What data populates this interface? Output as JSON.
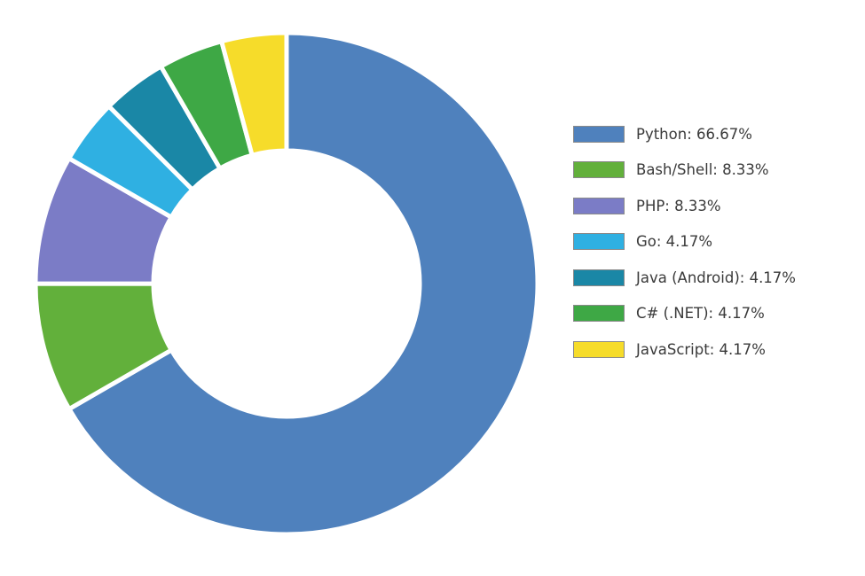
{
  "chart_data": {
    "type": "pie",
    "variant": "donut",
    "title": "",
    "categories": [
      "Python",
      "Bash/Shell",
      "PHP",
      "Go",
      "Java (Android)",
      "C# (.NET)",
      "JavaScript"
    ],
    "values": [
      66.67,
      8.33,
      8.33,
      4.17,
      4.17,
      4.17,
      4.17
    ],
    "colors": [
      "#4f81bd",
      "#62b03b",
      "#7b7cc6",
      "#2fb0e2",
      "#1a87a6",
      "#3ea845",
      "#f6dc2a"
    ],
    "legend_position": "right",
    "start_angle": "12 o'clock",
    "direction": "clockwise"
  },
  "legend": {
    "items": [
      {
        "label": "Python: 66.67%",
        "color": "#4f81bd"
      },
      {
        "label": "Bash/Shell: 8.33%",
        "color": "#62b03b"
      },
      {
        "label": "PHP: 8.33%",
        "color": "#7b7cc6"
      },
      {
        "label": "Go: 4.17%",
        "color": "#2fb0e2"
      },
      {
        "label": "Java (Android): 4.17%",
        "color": "#1a87a6"
      },
      {
        "label": "C# (.NET): 4.17%",
        "color": "#3ea845"
      },
      {
        "label": "JavaScript: 4.17%",
        "color": "#f6dc2a"
      }
    ]
  }
}
